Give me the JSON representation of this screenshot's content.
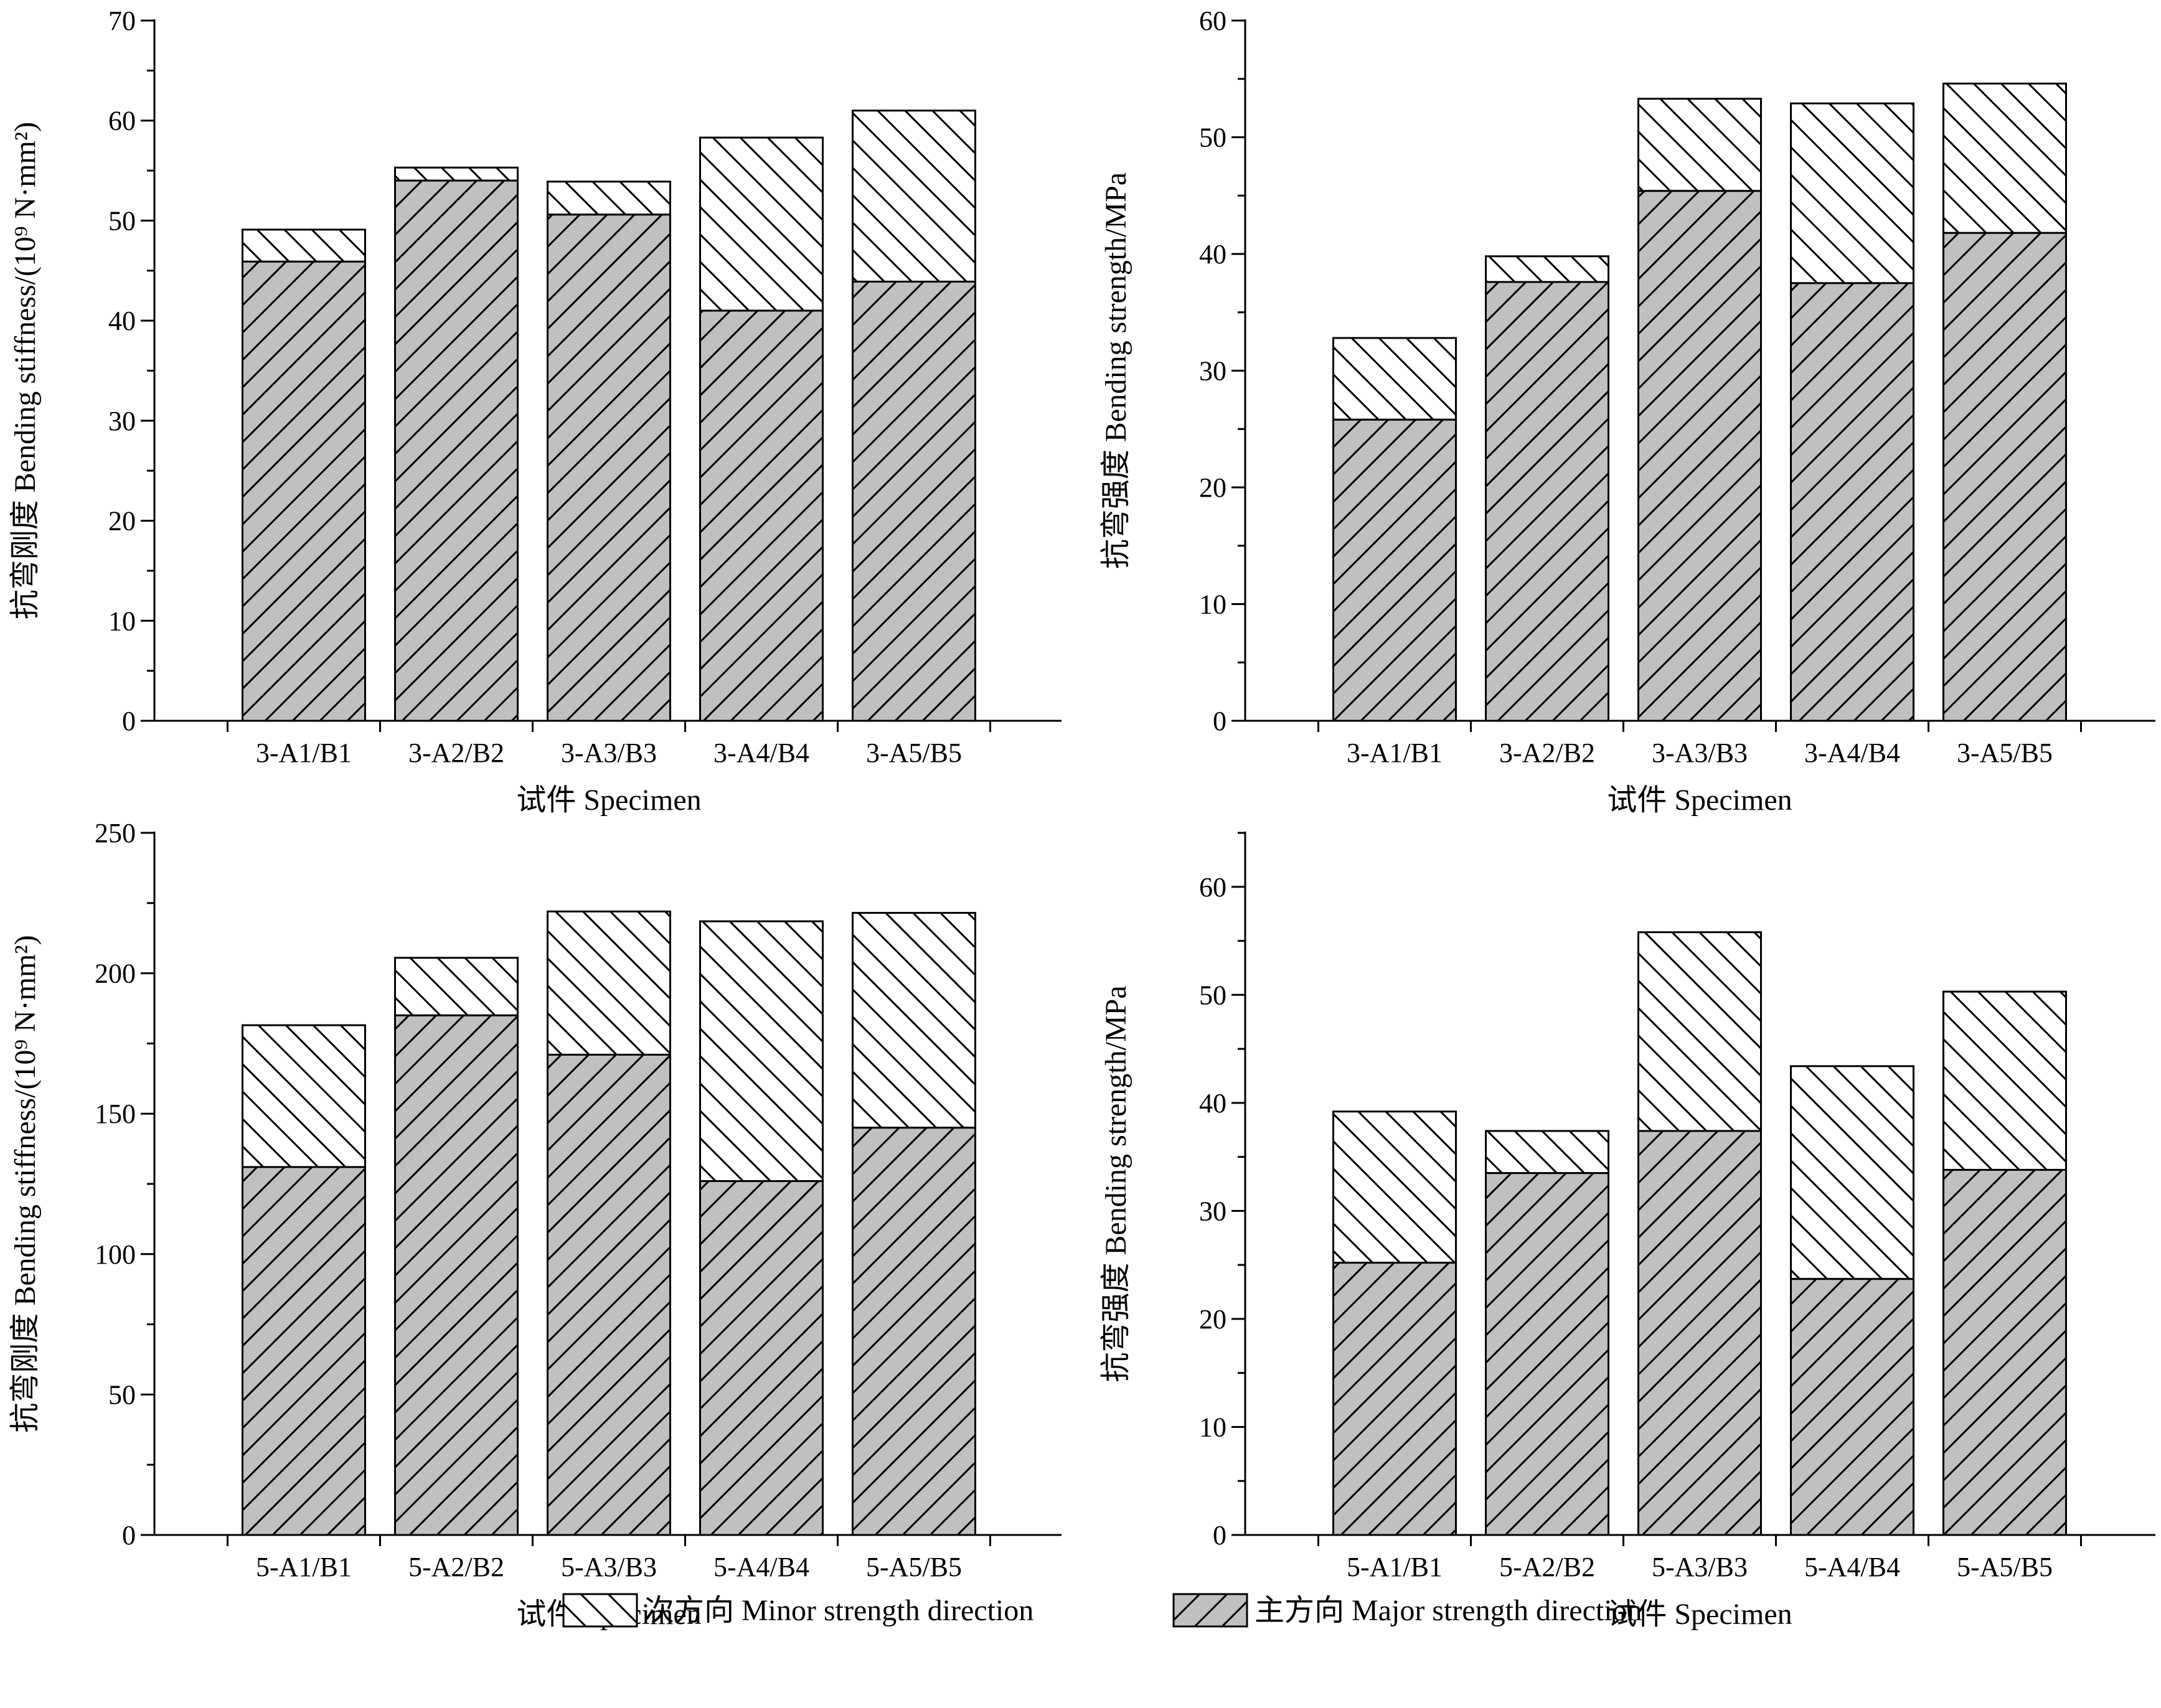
{
  "chart_data": [
    {
      "type": "bar",
      "stacked": true,
      "categories": [
        "3-A1/B1",
        "3-A2/B2",
        "3-A3/B3",
        "3-A4/B4",
        "3-A5/B5"
      ],
      "series": [
        {
          "name": "主方向  Major strength direction",
          "values": [
            45.9,
            54.0,
            50.6,
            41.0,
            43.9
          ]
        },
        {
          "name": "次方向  Minor strength direction",
          "values": [
            3.2,
            1.3,
            3.3,
            17.3,
            17.1
          ]
        }
      ],
      "xlabel": "试件  Specimen",
      "ylabel": "抗弯刚度 Bending stiffness/(10⁹ N·mm²)",
      "ylim": [
        0,
        70
      ],
      "yticks": [
        "0",
        "10",
        "20",
        "30",
        "40",
        "50",
        "60",
        "70"
      ],
      "grid": false
    },
    {
      "type": "bar",
      "stacked": true,
      "categories": [
        "3-A1/B1",
        "3-A2/B2",
        "3-A3/B3",
        "3-A4/B4",
        "3-A5/B5"
      ],
      "series": [
        {
          "name": "主方向  Major strength direction",
          "values": [
            25.8,
            37.6,
            45.4,
            37.5,
            41.8
          ]
        },
        {
          "name": "次方向  Minor strength direction",
          "values": [
            7.0,
            2.2,
            7.9,
            15.4,
            12.8
          ]
        }
      ],
      "xlabel": "试件  Specimen",
      "ylabel": "抗弯强度 Bending strength/MPa",
      "ylim": [
        0,
        60
      ],
      "yticks": [
        "0",
        "10",
        "20",
        "30",
        "40",
        "50",
        "60"
      ],
      "grid": false
    },
    {
      "type": "bar",
      "stacked": true,
      "categories": [
        "5-A1/B1",
        "5-A2/B2",
        "5-A3/B3",
        "5-A4/B4",
        "5-A5/B5"
      ],
      "series": [
        {
          "name": "主方向  Major strength direction",
          "values": [
            131,
            185,
            171,
            126,
            145
          ]
        },
        {
          "name": "次方向  Minor strength direction",
          "values": [
            50.5,
            20.5,
            51,
            92.5,
            76.5
          ]
        }
      ],
      "xlabel": "试件  Specimen",
      "ylabel": "抗弯刚度 Bending stiffness/(10⁹ N·mm²)",
      "ylim": [
        0,
        250
      ],
      "yticks": [
        "0",
        "50",
        "100",
        "150",
        "200",
        "250"
      ],
      "grid": false
    },
    {
      "type": "bar",
      "stacked": true,
      "categories": [
        "5-A1/B1",
        "5-A2/B2",
        "5-A3/B3",
        "5-A4/B4",
        "5-A5/B5"
      ],
      "series": [
        {
          "name": "主方向  Major strength direction",
          "values": [
            25.2,
            33.5,
            37.4,
            23.7,
            33.8
          ]
        },
        {
          "name": "次方向  Minor strength direction",
          "values": [
            14.0,
            3.9,
            18.4,
            19.7,
            16.5
          ]
        }
      ],
      "xlabel": "试件  Specimen",
      "ylabel": "抗弯强度 Bending strength/MPa",
      "ylim": [
        0,
        65
      ],
      "yticks": [
        "0",
        "10",
        "20",
        "30",
        "40",
        "50",
        "60"
      ],
      "grid": false
    }
  ],
  "legend": {
    "minor_label": "次方向   Minor strength direction",
    "major_label": "主方向  Major strength direction",
    "position": "bottom-center"
  },
  "colors": {
    "major_fill": "#c0c0c0",
    "minor_fill": "#ffffff",
    "hatch_stroke": "#000000",
    "axis": "#000000"
  }
}
